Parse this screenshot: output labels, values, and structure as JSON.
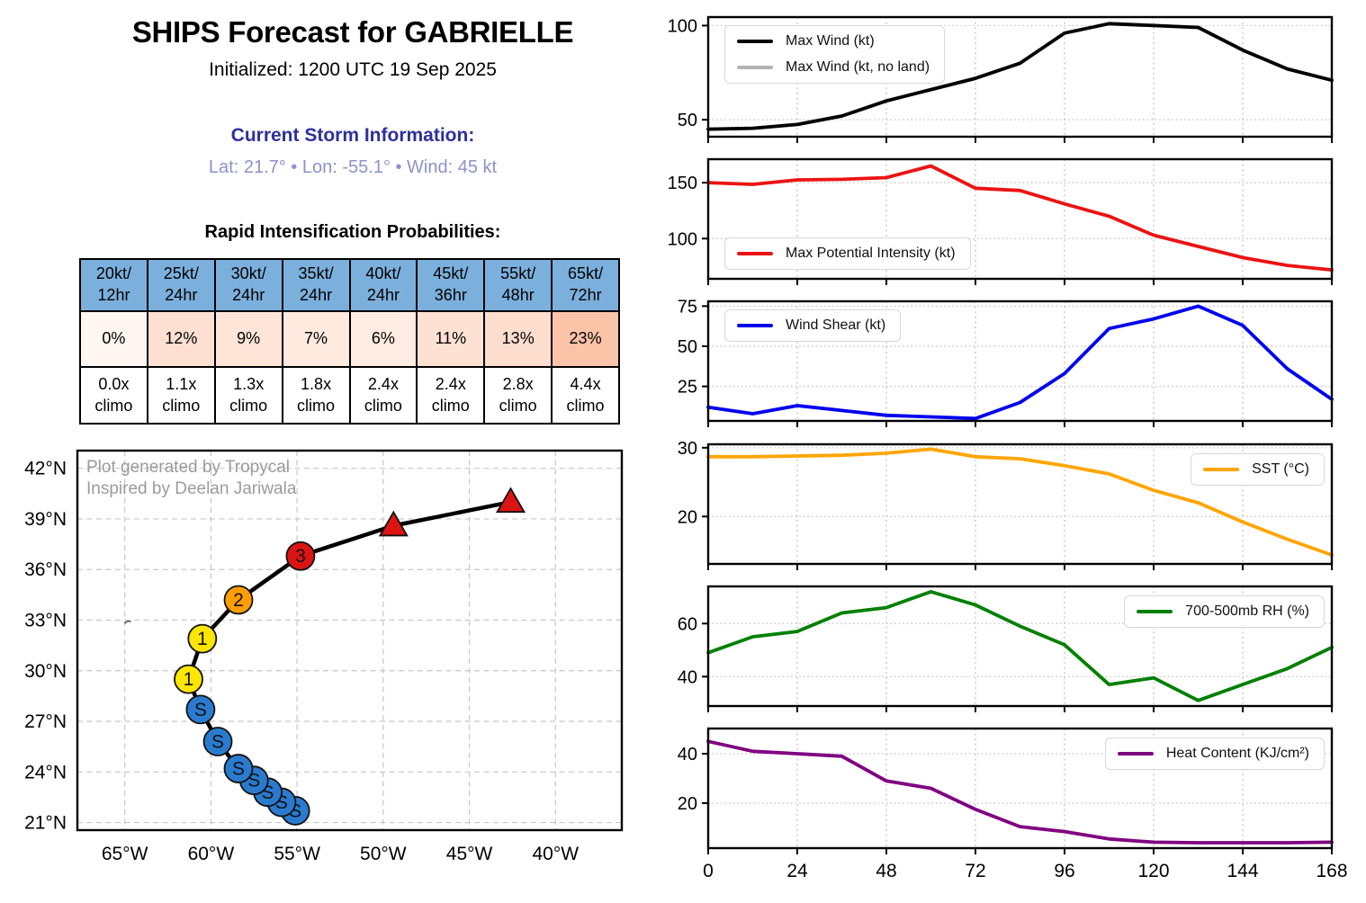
{
  "header": {
    "title": "SHIPS Forecast for GABRIELLE",
    "initialized": "Initialized: 1200 UTC 19 Sep 2025",
    "storm_info_title": "Current Storm Information:",
    "storm_info": "Lat: 21.7° • Lon: -55.1° • Wind: 45 kt"
  },
  "colors": {
    "storm_info_title": "#2f2f9d",
    "storm_info": "#8d92c9",
    "table_header_bg": "#7cb0dc",
    "watermark": "#9b9b9b"
  },
  "ri_table": {
    "title": "Rapid Intensification Probabilities:",
    "columns": [
      {
        "header": "20kt/\n12hr",
        "prob": "0%",
        "prob_bg": "#fff6f1",
        "climo": "0.0x\nclimo"
      },
      {
        "header": "25kt/\n24hr",
        "prob": "12%",
        "prob_bg": "#fde0d2",
        "climo": "1.1x\nclimo"
      },
      {
        "header": "30kt/\n24hr",
        "prob": "9%",
        "prob_bg": "#fee5d8",
        "climo": "1.3x\nclimo"
      },
      {
        "header": "35kt/\n24hr",
        "prob": "7%",
        "prob_bg": "#feeadf",
        "climo": "1.8x\nclimo"
      },
      {
        "header": "40kt/\n24hr",
        "prob": "6%",
        "prob_bg": "#feece2",
        "climo": "2.4x\nclimo"
      },
      {
        "header": "45kt/\n36hr",
        "prob": "11%",
        "prob_bg": "#fde2d4",
        "climo": "2.4x\nclimo"
      },
      {
        "header": "55kt/\n48hr",
        "prob": "13%",
        "prob_bg": "#fdddce",
        "climo": "2.8x\nclimo"
      },
      {
        "header": "65kt/\n72hr",
        "prob": "23%",
        "prob_bg": "#fbc3a8",
        "climo": "4.4x\nclimo"
      }
    ]
  },
  "map": {
    "watermark_line1": "Plot generated by Tropycal",
    "watermark_line2": "Inspired by Deelan Jariwala",
    "xlim": [
      -67.75,
      -36.15
    ],
    "ylim": [
      20.55,
      43.05
    ],
    "xticks": [
      {
        "value": -65,
        "label": "65°W"
      },
      {
        "value": -60,
        "label": "60°W"
      },
      {
        "value": -55,
        "label": "55°W"
      },
      {
        "value": -50,
        "label": "50°W"
      },
      {
        "value": -45,
        "label": "45°W"
      },
      {
        "value": -40,
        "label": "40°W"
      }
    ],
    "yticks": [
      {
        "value": 21,
        "label": "21°N"
      },
      {
        "value": 24,
        "label": "24°N"
      },
      {
        "value": 27,
        "label": "27°N"
      },
      {
        "value": 30,
        "label": "30°N"
      },
      {
        "value": 33,
        "label": "33°N"
      },
      {
        "value": 36,
        "label": "36°N"
      },
      {
        "value": 39,
        "label": "39°N"
      },
      {
        "value": 42,
        "label": "42°N"
      }
    ],
    "bermuda": {
      "lon": -64.85,
      "lat": 32.85
    },
    "track": [
      {
        "lon": -55.1,
        "lat": 21.7,
        "marker": "circle",
        "label": "S",
        "color": "#2a7bd0"
      },
      {
        "lon": -55.9,
        "lat": 22.2,
        "marker": "circle",
        "label": "S",
        "color": "#2a7bd0"
      },
      {
        "lon": -56.7,
        "lat": 22.8,
        "marker": "circle",
        "label": "S",
        "color": "#2a7bd0"
      },
      {
        "lon": -57.5,
        "lat": 23.5,
        "marker": "circle",
        "label": "S",
        "color": "#2a7bd0"
      },
      {
        "lon": -58.4,
        "lat": 24.2,
        "marker": "circle",
        "label": "S",
        "color": "#2a7bd0"
      },
      {
        "lon": -59.6,
        "lat": 25.8,
        "marker": "circle",
        "label": "S",
        "color": "#2a7bd0"
      },
      {
        "lon": -60.6,
        "lat": 27.7,
        "marker": "circle",
        "label": "S",
        "color": "#2a7bd0"
      },
      {
        "lon": -61.3,
        "lat": 29.5,
        "marker": "circle",
        "label": "1",
        "color": "#ffe600"
      },
      {
        "lon": -60.5,
        "lat": 31.9,
        "marker": "circle",
        "label": "1",
        "color": "#ffe600"
      },
      {
        "lon": -58.4,
        "lat": 34.2,
        "marker": "circle",
        "label": "2",
        "color": "#ff9e00"
      },
      {
        "lon": -54.8,
        "lat": 36.8,
        "marker": "circle",
        "label": "3",
        "color": "#dc1414"
      },
      {
        "lon": -49.4,
        "lat": 38.6,
        "marker": "triangle",
        "label": "",
        "color": "#dc1414"
      },
      {
        "lon": -42.6,
        "lat": 40.0,
        "marker": "triangle",
        "label": "",
        "color": "#dc1414"
      }
    ]
  },
  "hours": [
    0,
    12,
    24,
    36,
    48,
    60,
    72,
    84,
    96,
    108,
    120,
    132,
    144,
    156,
    168
  ],
  "xaxis": {
    "ticks": [
      0,
      24,
      48,
      72,
      96,
      120,
      144,
      168
    ]
  },
  "chart_data": [
    {
      "type": "line",
      "name": "max-wind",
      "series": [
        {
          "name": "Max Wind (kt)",
          "color": "#000000",
          "values": [
            45,
            45.5,
            47.5,
            52,
            60,
            66,
            72,
            80,
            96,
            101,
            100,
            99,
            87,
            77,
            71
          ]
        },
        {
          "name": "Max Wind (kt, no land)",
          "color": "#b3b3b3",
          "values": [
            45,
            45.5,
            47.5,
            52,
            60,
            66,
            72,
            80,
            96,
            101,
            100,
            99,
            87,
            77,
            71
          ]
        }
      ],
      "yticks": [
        50,
        100
      ],
      "ylim": [
        41,
        104.5
      ],
      "legend_pos": "top-left"
    },
    {
      "type": "line",
      "name": "max-potential-intensity",
      "series": [
        {
          "name": "Max Potential Intensity (kt)",
          "color": "#ec1313",
          "values": [
            150,
            148.5,
            152.5,
            153,
            154.5,
            165,
            145,
            143,
            131,
            120,
            103,
            93,
            83,
            76,
            72
          ]
        }
      ],
      "yticks": [
        100,
        150
      ],
      "ylim": [
        64,
        171
      ],
      "legend_pos": "bottom-left"
    },
    {
      "type": "line",
      "name": "wind-shear",
      "series": [
        {
          "name": "Wind Shear (kt)",
          "color": "#0000ee",
          "values": [
            12,
            8,
            13,
            10,
            7,
            6,
            5,
            15,
            33,
            61,
            67,
            75,
            63,
            36,
            17
          ]
        }
      ],
      "yticks": [
        25,
        50,
        75
      ],
      "ylim": [
        3.5,
        78
      ],
      "legend_pos": "top-left"
    },
    {
      "type": "line",
      "name": "sst",
      "series": [
        {
          "name": "SST (°C)",
          "color": "#ffa500",
          "values": [
            28.7,
            28.7,
            28.8,
            28.9,
            29.2,
            29.8,
            28.7,
            28.4,
            27.4,
            26.2,
            23.8,
            22,
            19.2,
            16.7,
            14.4
          ]
        }
      ],
      "yticks": [
        20,
        30
      ],
      "ylim": [
        13.1,
        30.5
      ],
      "legend_pos": "top-right"
    },
    {
      "type": "line",
      "name": "rh-700-500mb",
      "series": [
        {
          "name": "700-500mb RH (%)",
          "color": "#008000",
          "values": [
            49,
            55,
            57,
            64,
            66,
            72,
            67,
            59,
            52,
            37,
            39.5,
            31,
            37,
            43,
            51
          ]
        }
      ],
      "yticks": [
        40,
        60
      ],
      "ylim": [
        28.9,
        74
      ],
      "legend_pos": "top-right"
    },
    {
      "type": "line",
      "name": "heat-content",
      "series": [
        {
          "name": "Heat Content (KJ/cm²)",
          "color": "#800080",
          "values": [
            45,
            41,
            40,
            39,
            29,
            26,
            17.5,
            10.5,
            8.5,
            5.5,
            4.2,
            4,
            4,
            4,
            4.2
          ]
        }
      ],
      "yticks": [
        20,
        40
      ],
      "ylim": [
        1.8,
        50.2
      ],
      "legend_pos": "top-right"
    }
  ]
}
